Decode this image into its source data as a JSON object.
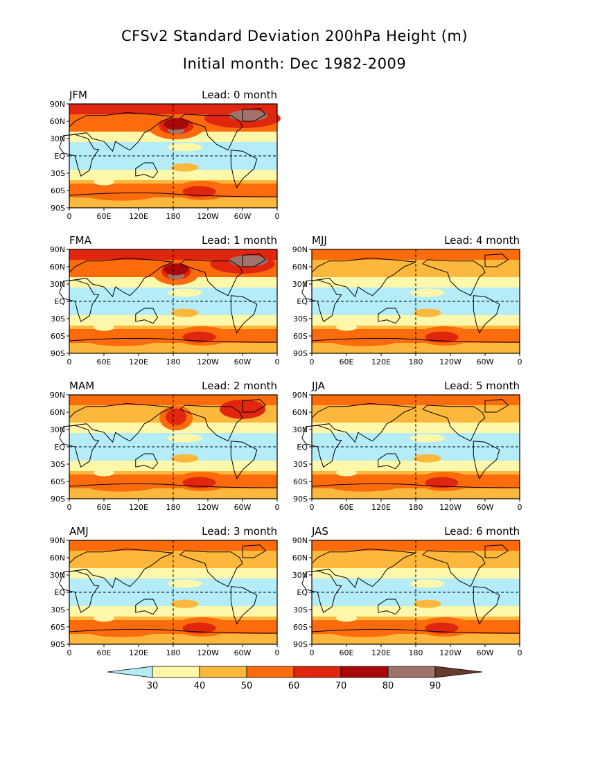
{
  "title": "CFSv2 Standard Deviation 200hPa Height (m)",
  "subtitle": "Initial month: Dec 1982-2009",
  "x_ticks": [
    "0",
    "60E",
    "120E",
    "180",
    "120W",
    "60W",
    "0"
  ],
  "y_ticks": [
    "90N",
    "60N",
    "30N",
    "EQ",
    "30S",
    "60S",
    "90S"
  ],
  "panels": [
    {
      "season": "JFM",
      "lead": "Lead: 0 month",
      "intensity": 1.0
    },
    {
      "season": "FMA",
      "lead": "Lead: 1 month",
      "intensity": 0.85
    },
    {
      "season": "MJJ",
      "lead": "Lead: 4 month",
      "intensity": 0.4
    },
    {
      "season": "MAM",
      "lead": "Lead: 2 month",
      "intensity": 0.6
    },
    {
      "season": "JJA",
      "lead": "Lead: 5 month",
      "intensity": 0.35
    },
    {
      "season": "AMJ",
      "lead": "Lead: 3 month",
      "intensity": 0.45
    },
    {
      "season": "JAS",
      "lead": "Lead: 6 month",
      "intensity": 0.35
    }
  ],
  "colorbar": {
    "labels": [
      "30",
      "40",
      "50",
      "60",
      "70",
      "80",
      "90"
    ],
    "colors": [
      "#b4ecf8",
      "#fff8aa",
      "#fcb83c",
      "#fc6b0c",
      "#e0260e",
      "#a80808",
      "#9f736c",
      "#6b3a2c"
    ]
  }
}
